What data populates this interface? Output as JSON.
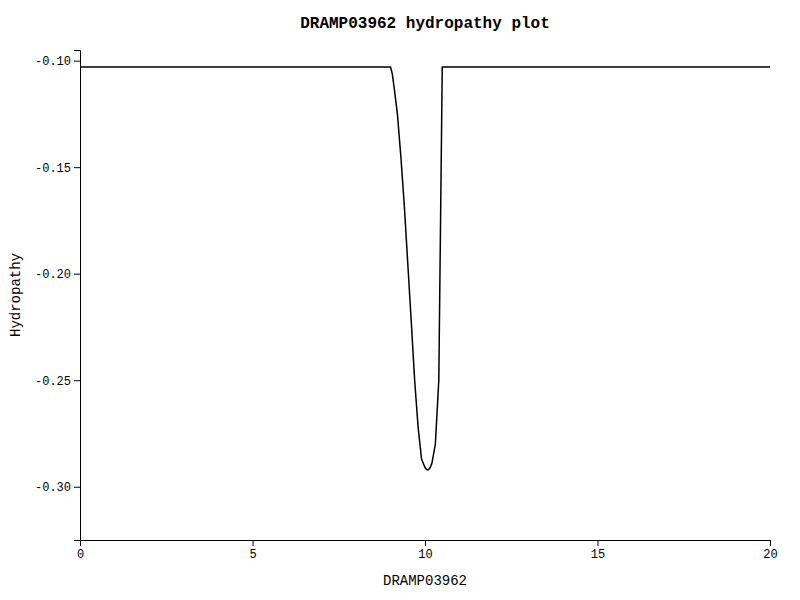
{
  "chart_data": {
    "type": "line",
    "title": "DRAMP03962 hydropathy plot",
    "xlabel": "DRAMP03962",
    "ylabel": "Hydropathy",
    "x": [
      0.0,
      9.0,
      9.05,
      9.1,
      9.2,
      9.3,
      9.4,
      9.5,
      9.6,
      9.7,
      9.8,
      9.9,
      10.0,
      10.05,
      10.1,
      10.15,
      10.2,
      10.3,
      10.4,
      10.5,
      20.0
    ],
    "series": [
      {
        "color": "#000000",
        "values": [
          -0.103,
          -0.103,
          -0.106,
          -0.112,
          -0.125,
          -0.145,
          -0.168,
          -0.195,
          -0.222,
          -0.25,
          -0.272,
          -0.287,
          -0.291,
          -0.292,
          -0.292,
          -0.291,
          -0.289,
          -0.28,
          -0.25,
          -0.103,
          -0.103
        ]
      }
    ],
    "xlim": [
      0,
      20
    ],
    "ylim": [
      -0.325,
      -0.095
    ],
    "xticks": [
      0,
      5,
      10,
      15,
      20
    ],
    "yticks": [
      {
        "value": -0.3,
        "label": "-0.30"
      },
      -0.25,
      {
        "value": -0.2,
        "label": "-0.20"
      },
      -0.15,
      {
        "value": -0.1,
        "label": "-0.10"
      }
    ],
    "grid": false
  }
}
